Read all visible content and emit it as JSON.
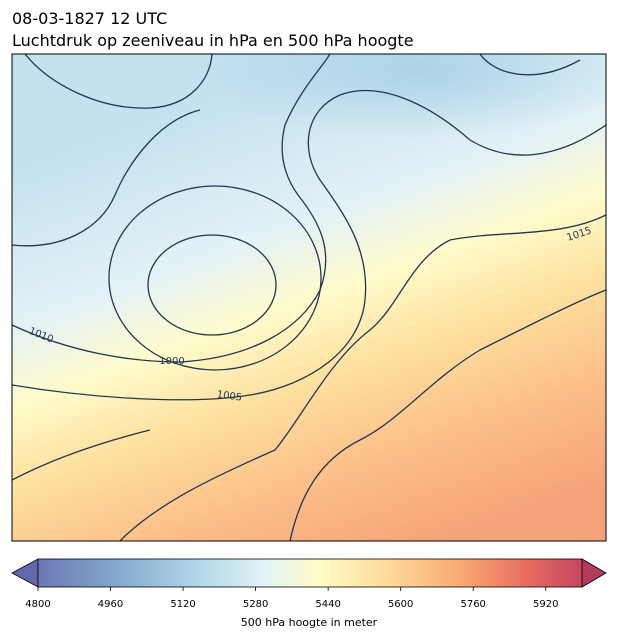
{
  "header": {
    "time": "08-03-1827 12 UTC",
    "title": "Luchtdruk op zeeniveau in hPa en 500 hPa hoogte"
  },
  "contour_labels": [
    "1010",
    "1000",
    "1005",
    "1015"
  ],
  "colorbar": {
    "lim": [
      4800,
      6000
    ],
    "ticks": [
      4800,
      4960,
      5120,
      5280,
      5440,
      5600,
      5760,
      5920
    ],
    "label": "500 hPa hoogte in meter"
  }
}
